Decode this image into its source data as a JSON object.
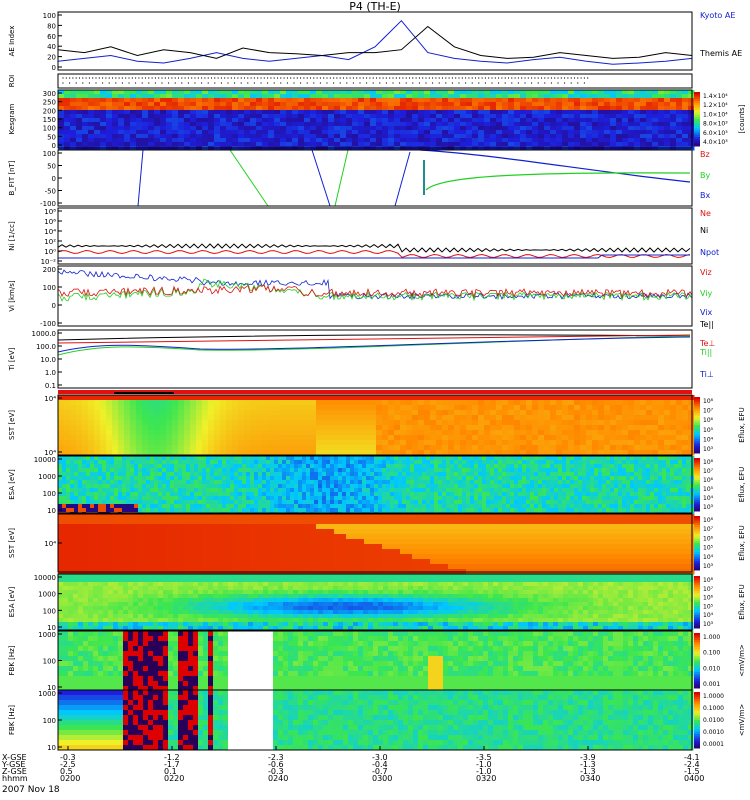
{
  "header": {
    "title": "P4 (TH-E)",
    "date": "2007 Nov 18"
  },
  "time_axis": {
    "label_rows": [
      "X-GSE",
      "Y-GSE",
      "Z-GSE",
      "hhmm"
    ],
    "ticks": [
      {
        "x": "-0.3",
        "y": "-2.5",
        "z": "0.5",
        "t": "0200"
      },
      {
        "x": "-1.2",
        "y": "-1.7",
        "z": "0.1",
        "t": "0220"
      },
      {
        "x": "-2.3",
        "y": "-0.6",
        "z": "-0.3",
        "t": "0240"
      },
      {
        "x": "-3.0",
        "y": "-0.4",
        "z": "-0.7",
        "t": "0300"
      },
      {
        "x": "-3.5",
        "y": "-1.0",
        "z": "-1.0",
        "t": "0320"
      },
      {
        "x": "-3.9",
        "y": "-1.3",
        "z": "-1.3",
        "t": "0340"
      },
      {
        "x": "-4.1",
        "y": "-2.4",
        "z": "-1.5",
        "t": "0400"
      }
    ]
  },
  "colors": {
    "black": "#000000",
    "blue": "#1020d0",
    "green": "#20d020",
    "red": "#e01010"
  },
  "chart_data": [
    {
      "type": "line",
      "ylabel": "AE Index",
      "yticks": [
        "100",
        "80",
        "60",
        "40",
        "20",
        "0"
      ],
      "ylim": [
        0,
        100
      ],
      "x": [
        0,
        5,
        10,
        15,
        20,
        25,
        30,
        35,
        40,
        45,
        50,
        55,
        60,
        65,
        70,
        75,
        80,
        85,
        90,
        95,
        100,
        105,
        110,
        115,
        120
      ],
      "series": [
        {
          "name": "Kyoto AE",
          "color": "#1020d0",
          "values": [
            15,
            20,
            25,
            15,
            12,
            20,
            30,
            20,
            15,
            20,
            25,
            18,
            40,
            85,
            30,
            20,
            15,
            12,
            18,
            22,
            15,
            10,
            12,
            15,
            20
          ]
        },
        {
          "name": "Themis AE",
          "color": "#000000",
          "values": [
            35,
            30,
            40,
            25,
            35,
            30,
            20,
            38,
            30,
            28,
            25,
            30,
            30,
            35,
            75,
            40,
            25,
            20,
            22,
            30,
            25,
            20,
            22,
            30,
            25
          ]
        }
      ]
    },
    {
      "type": "heatmap",
      "ylabel": "ROI",
      "yticks": []
    },
    {
      "type": "heatmap",
      "ylabel": "Kesgram",
      "yticks": [
        "300",
        "250",
        "200",
        "150",
        "100",
        "50",
        "0"
      ],
      "colorbar": {
        "label": "[counts]",
        "ticks": [
          "1.4×10⁴",
          "1.2×10⁴",
          "1.0×10⁴",
          "8.0×10³",
          "6.0×10³",
          "4.0×10³"
        ]
      }
    },
    {
      "type": "line",
      "ylabel": "B_FIT",
      "units": "[nT]",
      "yticks": [
        "100",
        "50",
        "0",
        "-50",
        "-100"
      ],
      "ylim": [
        -100,
        100
      ],
      "series": [
        {
          "name": "Bz",
          "color": "#e01010"
        },
        {
          "name": "By",
          "color": "#20d020"
        },
        {
          "name": "Bx",
          "color": "#1020d0"
        }
      ]
    },
    {
      "type": "line",
      "ylabel": "Ni",
      "units": "[1/cc]",
      "yticks": [
        "10⁸",
        "10⁶",
        "10⁴",
        "10²",
        "10⁰",
        "10⁻²"
      ],
      "series": [
        {
          "name": "Ne",
          "color": "#e01010"
        },
        {
          "name": "Ni",
          "color": "#000000"
        },
        {
          "name": "Npot",
          "color": "#1020d0"
        }
      ]
    },
    {
      "type": "line",
      "ylabel": "Vi",
      "units": "[km/s]",
      "yticks": [
        "200",
        "100",
        "0",
        "-100"
      ],
      "ylim": [
        -150,
        200
      ],
      "series": [
        {
          "name": "Viz",
          "color": "#e01010"
        },
        {
          "name": "Viy",
          "color": "#20d020"
        },
        {
          "name": "Vix",
          "color": "#1020d0"
        }
      ]
    },
    {
      "type": "line",
      "ylabel": "Ti",
      "units": "[eV]",
      "yticks": [
        "1000.0",
        "100.0",
        "10.0",
        "1.0",
        "0.1"
      ],
      "series": [
        {
          "name": "Te||",
          "color": "#000000"
        },
        {
          "name": "Te⊥",
          "color": "#e01010"
        },
        {
          "name": "Ti||",
          "color": "#20d020"
        },
        {
          "name": "Ti⊥",
          "color": "#1020d0"
        }
      ]
    },
    {
      "type": "heatmap",
      "ylabel": "SST",
      "units": "[eV]",
      "yticks": [
        "10⁴",
        "10⁴"
      ],
      "colorbar": {
        "label": "Eflux, EFU",
        "ticks": [
          "10⁸",
          "10⁷",
          "10⁶",
          "10⁵",
          "10⁴",
          "10³"
        ]
      }
    },
    {
      "type": "heatmap",
      "ylabel": "ESA",
      "units": "[eV]",
      "yticks": [
        "10000",
        "1000",
        "100",
        "10"
      ],
      "colorbar": {
        "label": "Eflux, EFU",
        "ticks": [
          "10⁸",
          "10⁷",
          "10⁶",
          "10⁵",
          "10⁴",
          "10³"
        ]
      }
    },
    {
      "type": "heatmap",
      "ylabel": "SST",
      "units": "[eV]",
      "yticks": [
        "10⁴"
      ],
      "colorbar": {
        "label": "Eflux, EFU",
        "ticks": [
          "10⁸",
          "10⁷",
          "10⁶",
          "10⁵",
          "10⁴",
          "10³"
        ]
      }
    },
    {
      "type": "heatmap",
      "ylabel": "ESA",
      "units": "[eV]",
      "yticks": [
        "10000",
        "1000",
        "100",
        "10"
      ],
      "colorbar": {
        "label": "Eflux, EFU",
        "ticks": [
          "10⁸",
          "10⁷",
          "10⁶",
          "10⁵",
          "10⁴",
          "10³"
        ]
      }
    },
    {
      "type": "heatmap",
      "ylabel": "FBK",
      "units": "[Hz]",
      "yticks": [
        "1000",
        "100",
        "10"
      ],
      "colorbar": {
        "label": "<mV/m>",
        "ticks": [
          "1.000",
          "0.100",
          "0.010",
          "0.001"
        ]
      }
    },
    {
      "type": "heatmap",
      "ylabel": "FBK",
      "units": "[Hz]",
      "yticks": [
        "1000",
        "100",
        "10"
      ],
      "colorbar": {
        "label": "<mV/m>",
        "ticks": [
          "1.0000",
          "0.1000",
          "0.0100",
          "0.0010",
          "0.0001"
        ]
      }
    }
  ]
}
